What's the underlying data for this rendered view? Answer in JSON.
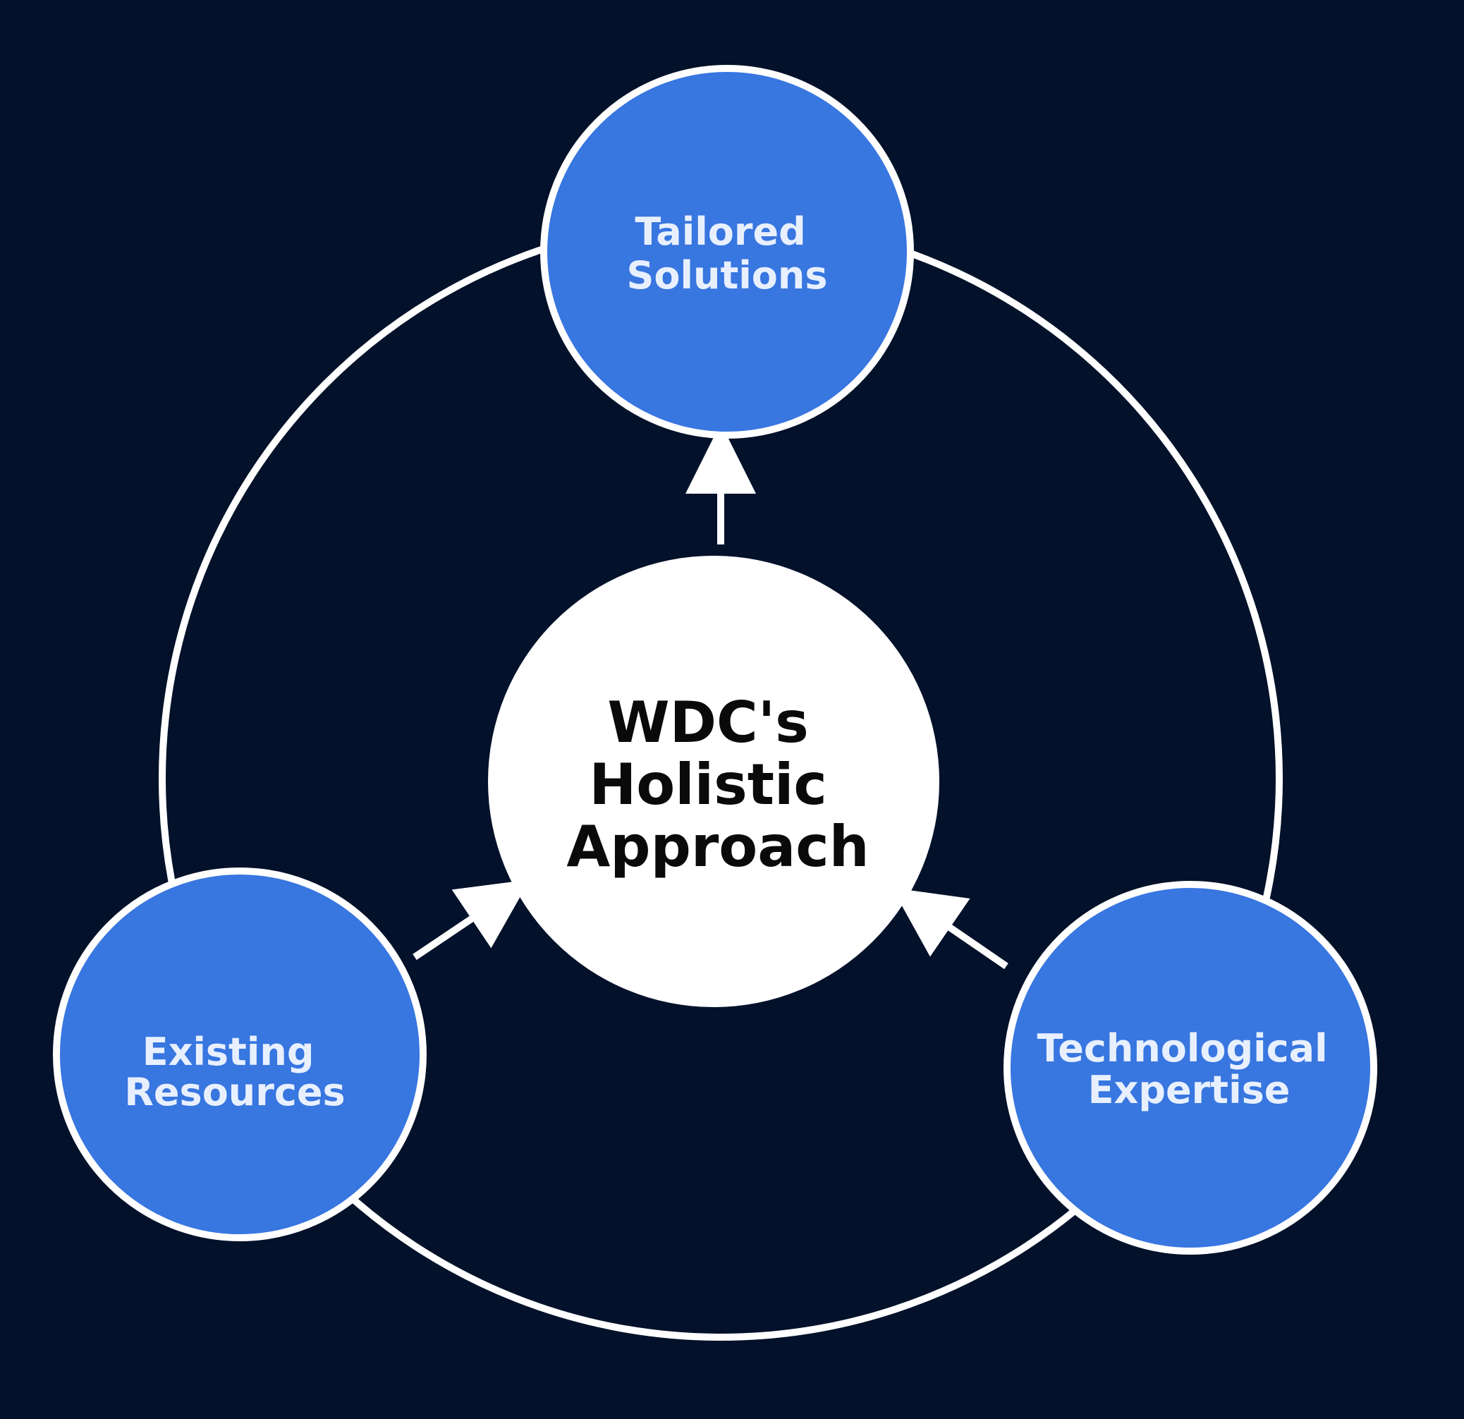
{
  "colors": {
    "background": "#03112a",
    "node_fill": "#3876e0",
    "outline": "#ffffff",
    "center_fill": "#ffffff",
    "center_text": "#0a0a0a",
    "node_text": "#e8f0ff"
  },
  "center": {
    "lines": [
      "WDC's",
      "Holistic",
      "Approach"
    ]
  },
  "nodes": {
    "top": {
      "lines": [
        "Tailored",
        "Solutions"
      ]
    },
    "left": {
      "lines": [
        "Existing",
        "Resources"
      ]
    },
    "right": {
      "lines": [
        "Technological",
        "Expertise"
      ]
    }
  }
}
